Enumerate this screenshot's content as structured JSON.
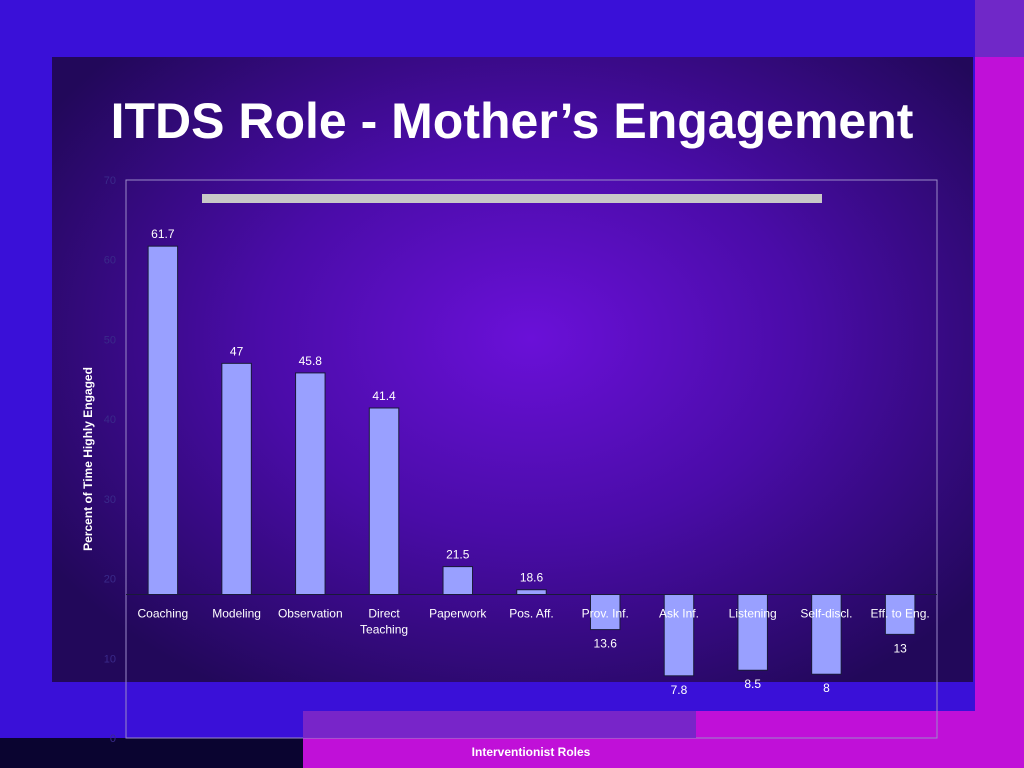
{
  "slide": {
    "title": "ITDS Role - Mother’s Engagement"
  },
  "colors": {
    "background": "#3a10d8",
    "panel": "#200a5a",
    "accent_magenta": "#c010d8",
    "accent_purple": "#7020c0",
    "bar_fill": "#99a0ff"
  },
  "chart_data": {
    "type": "bar",
    "title": "",
    "xlabel": "Interventionist Roles",
    "ylabel": "Percent of Time Highly Engaged",
    "ylim": [
      0,
      70
    ],
    "yticks": [
      0,
      10,
      20,
      30,
      40,
      50,
      60,
      70
    ],
    "baseline": 18,
    "categories": [
      "Coaching",
      "Modeling",
      "Observation",
      "Direct Teaching",
      "Paperwork",
      "Pos. Aff.",
      "Prov. Inf.",
      "Ask Inf.",
      "Listening",
      "Self-discl.",
      "Eff. to Eng."
    ],
    "values": [
      61.7,
      47,
      45.8,
      41.4,
      21.5,
      18.6,
      13.6,
      7.8,
      8.5,
      8,
      13
    ],
    "value_labels": [
      "61.7",
      "47",
      "45.8",
      "41.4",
      "21.5",
      "18.6",
      "13.6",
      "7.8",
      "8.5",
      "8",
      "13"
    ],
    "grid": false,
    "legend": "none"
  }
}
